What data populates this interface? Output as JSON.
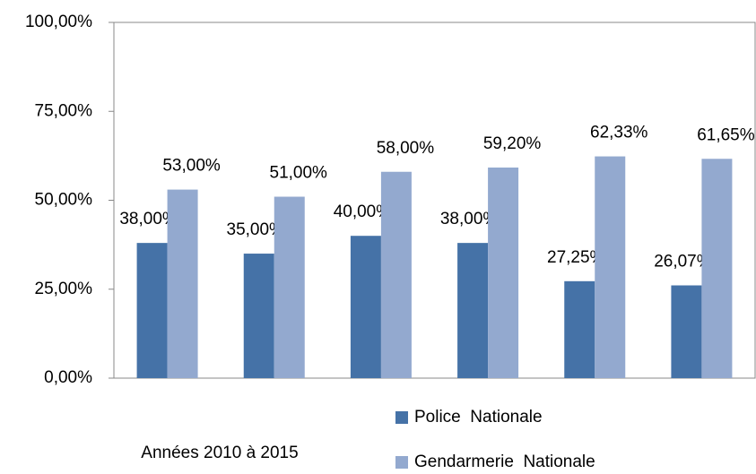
{
  "chart_data": {
    "type": "bar",
    "x_label": "Années 2010 à 2015",
    "categories": [
      null,
      null,
      null,
      null,
      null,
      null
    ],
    "series": [
      {
        "name": "Police  Nationale",
        "color": "#4572a7",
        "values": [
          38,
          35,
          40,
          38,
          27.25,
          26.07
        ],
        "value_labels": [
          "38,00%",
          "35,00%",
          "40,00%",
          "38,00%",
          "27,25%",
          "26,07%"
        ]
      },
      {
        "name": "Gendarmerie  Nationale",
        "color": "#93a9cf",
        "values": [
          53,
          51,
          58,
          59.2,
          62.33,
          61.65
        ],
        "value_labels": [
          "53,00%",
          "51,00%",
          "58,00%",
          "59,20%",
          "62,33%",
          "61,65%"
        ]
      }
    ],
    "ylim": [
      0,
      100
    ],
    "yticks": [
      {
        "value": 0,
        "label": "0,00%"
      },
      {
        "value": 25,
        "label": "25,00%"
      },
      {
        "value": 50,
        "label": "50,00%"
      },
      {
        "value": 75,
        "label": "75,00%"
      },
      {
        "value": 100,
        "label": "100,00%"
      }
    ],
    "grid": false
  }
}
